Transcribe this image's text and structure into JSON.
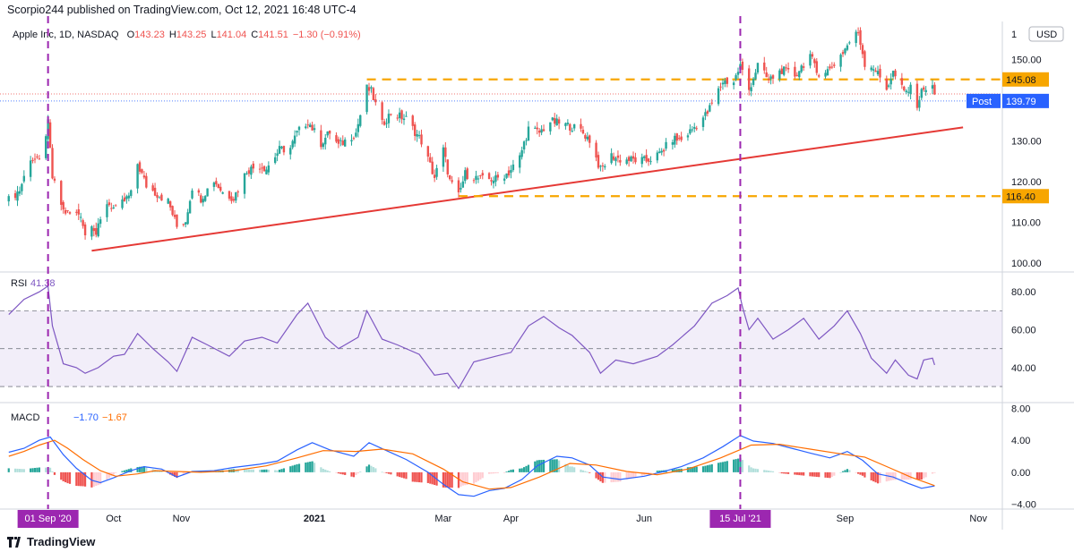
{
  "header": {
    "published_line": "Scorpio244 published on TradingView.com, Oct 12, 2021 16:48 UTC-4"
  },
  "footer": {
    "brand": "TradingView"
  },
  "colors": {
    "up": "#26a69a",
    "down": "#ef5350",
    "level": "#f7a600",
    "trendline": "#e53935",
    "vline": "#9c27b0",
    "rsi": "#7e57c2",
    "macd": "#2962ff",
    "signal": "#ff6d00",
    "post": "#2962ff"
  },
  "chart_data": [
    {
      "type": "candlestick",
      "title": "Apple Inc, 1D, NASDAQ",
      "ohlc_legend": {
        "open_label": "O",
        "open": "143.23",
        "high_label": "H",
        "high": "143.25",
        "low_label": "L",
        "low": "141.04",
        "close_label": "C",
        "close": "141.51",
        "change": "−1.30 (−0.91%)"
      },
      "currency": "USD",
      "ylim": [
        98,
        158
      ],
      "y_ticks": [
        "100.00",
        "110.00",
        "120.00",
        "130.00",
        "150.00"
      ],
      "x_tick_labels": [
        {
          "label": "Oct",
          "date": "2020-10-01"
        },
        {
          "label": "Nov",
          "date": "2020-11-01"
        },
        {
          "label": "2021",
          "date": "2021-01-01"
        },
        {
          "label": "Mar",
          "date": "2021-03-01"
        },
        {
          "label": "Apr",
          "date": "2021-04-01"
        },
        {
          "label": "Jun",
          "date": "2021-06-01"
        },
        {
          "label": "Sep",
          "date": "2021-09-01"
        },
        {
          "label": "Nov",
          "date": "2021-11-01"
        }
      ],
      "close_path": [
        [
          "2020-08-14",
          115.5
        ],
        [
          "2020-08-19",
          117.9
        ],
        [
          "2020-08-24",
          125.9
        ],
        [
          "2020-08-28",
          124.8
        ],
        [
          "2020-09-01",
          134.2
        ],
        [
          "2020-09-03",
          120.9
        ],
        [
          "2020-09-08",
          112.8
        ],
        [
          "2020-09-11",
          112.0
        ],
        [
          "2020-09-16",
          112.1
        ],
        [
          "2020-09-18",
          106.8
        ],
        [
          "2020-09-21",
          110.1
        ],
        [
          "2020-09-23",
          107.1
        ],
        [
          "2020-09-28",
          114.9
        ],
        [
          "2020-10-02",
          113.0
        ],
        [
          "2020-10-09",
          116.9
        ],
        [
          "2020-10-12",
          124.4
        ],
        [
          "2020-10-16",
          119.0
        ],
        [
          "2020-10-21",
          116.9
        ],
        [
          "2020-10-26",
          115.1
        ],
        [
          "2020-10-30",
          108.9
        ],
        [
          "2020-11-03",
          110.4
        ],
        [
          "2020-11-06",
          118.7
        ],
        [
          "2020-11-10",
          115.9
        ],
        [
          "2020-11-16",
          120.3
        ],
        [
          "2020-11-20",
          117.3
        ],
        [
          "2020-11-25",
          116.0
        ],
        [
          "2020-12-01",
          122.7
        ],
        [
          "2020-12-07",
          124.0
        ],
        [
          "2020-12-10",
          123.2
        ],
        [
          "2020-12-16",
          127.8
        ],
        [
          "2020-12-21",
          128.2
        ],
        [
          "2020-12-24",
          131.9
        ],
        [
          "2020-12-29",
          134.9
        ],
        [
          "2021-01-04",
          129.4
        ],
        [
          "2021-01-08",
          132.1
        ],
        [
          "2021-01-12",
          128.8
        ],
        [
          "2021-01-20",
          132.0
        ],
        [
          "2021-01-25",
          142.9
        ],
        [
          "2021-01-27",
          142.1
        ],
        [
          "2021-02-01",
          134.1
        ],
        [
          "2021-02-05",
          136.8
        ],
        [
          "2021-02-12",
          135.4
        ],
        [
          "2021-02-19",
          129.9
        ],
        [
          "2021-02-25",
          121.0
        ],
        [
          "2021-03-01",
          127.8
        ],
        [
          "2021-03-04",
          120.1
        ],
        [
          "2021-03-08",
          116.4
        ],
        [
          "2021-03-11",
          121.9
        ],
        [
          "2021-03-18",
          120.5
        ],
        [
          "2021-03-25",
          120.6
        ],
        [
          "2021-03-31",
          122.2
        ],
        [
          "2021-04-05",
          125.9
        ],
        [
          "2021-04-09",
          133.0
        ],
        [
          "2021-04-14",
          132.0
        ],
        [
          "2021-04-19",
          134.8
        ],
        [
          "2021-04-23",
          134.3
        ],
        [
          "2021-04-28",
          133.6
        ],
        [
          "2021-05-03",
          132.5
        ],
        [
          "2021-05-07",
          130.2
        ],
        [
          "2021-05-12",
          122.8
        ],
        [
          "2021-05-17",
          126.3
        ],
        [
          "2021-05-21",
          125.4
        ],
        [
          "2021-05-27",
          125.3
        ],
        [
          "2021-06-02",
          125.1
        ],
        [
          "2021-06-08",
          126.7
        ],
        [
          "2021-06-14",
          130.5
        ],
        [
          "2021-06-18",
          130.2
        ],
        [
          "2021-06-24",
          133.4
        ],
        [
          "2021-06-30",
          136.9
        ],
        [
          "2021-07-07",
          144.6
        ],
        [
          "2021-07-12",
          144.5
        ],
        [
          "2021-07-15",
          148.5
        ],
        [
          "2021-07-19",
          142.5
        ],
        [
          "2021-07-23",
          148.6
        ],
        [
          "2021-07-28",
          144.8
        ],
        [
          "2021-08-03",
          147.4
        ],
        [
          "2021-08-09",
          146.1
        ],
        [
          "2021-08-16",
          151.1
        ],
        [
          "2021-08-19",
          146.7
        ],
        [
          "2021-08-25",
          147.5
        ],
        [
          "2021-08-31",
          151.8
        ],
        [
          "2021-09-03",
          154.3
        ],
        [
          "2021-09-07",
          156.7
        ],
        [
          "2021-09-10",
          149.0
        ],
        [
          "2021-09-14",
          148.1
        ],
        [
          "2021-09-20",
          142.9
        ],
        [
          "2021-09-23",
          146.8
        ],
        [
          "2021-09-28",
          141.9
        ],
        [
          "2021-10-01",
          142.7
        ],
        [
          "2021-10-04",
          139.1
        ],
        [
          "2021-10-07",
          143.3
        ],
        [
          "2021-10-08",
          142.9
        ],
        [
          "2021-10-11",
          142.8
        ],
        [
          "2021-10-12",
          141.5
        ]
      ],
      "levels": [
        {
          "value": 145.08,
          "label": "145.08"
        },
        {
          "value": 116.4,
          "label": "116.40"
        }
      ],
      "trendline": {
        "start": [
          "2020-09-21",
          103
        ],
        "end": [
          "2021-10-25",
          133.3
        ]
      },
      "post_label": {
        "label": "Post",
        "value": 139.79,
        "value_label": "139.79"
      },
      "dotted_lines": [
        141.51,
        139.79
      ]
    },
    {
      "type": "line",
      "title": "RSI",
      "value_label": "41.38",
      "ylim": [
        22,
        90
      ],
      "y_ticks": [
        "80.00",
        "60.00",
        "40.00"
      ],
      "band": [
        30,
        70
      ],
      "midline": 50,
      "series_path": [
        [
          "2020-08-14",
          68
        ],
        [
          "2020-08-21",
          76
        ],
        [
          "2020-08-28",
          80
        ],
        [
          "2020-09-01",
          83
        ],
        [
          "2020-09-03",
          62
        ],
        [
          "2020-09-08",
          42
        ],
        [
          "2020-09-14",
          40
        ],
        [
          "2020-09-18",
          37
        ],
        [
          "2020-09-24",
          40
        ],
        [
          "2020-10-01",
          46
        ],
        [
          "2020-10-06",
          47
        ],
        [
          "2020-10-12",
          58
        ],
        [
          "2020-10-19",
          50
        ],
        [
          "2020-10-26",
          43
        ],
        [
          "2020-10-30",
          38
        ],
        [
          "2020-11-06",
          56
        ],
        [
          "2020-11-13",
          52
        ],
        [
          "2020-11-23",
          46
        ],
        [
          "2020-11-30",
          54
        ],
        [
          "2020-12-08",
          56
        ],
        [
          "2020-12-15",
          53
        ],
        [
          "2020-12-24",
          68
        ],
        [
          "2020-12-29",
          74
        ],
        [
          "2021-01-06",
          56
        ],
        [
          "2021-01-12",
          50
        ],
        [
          "2021-01-21",
          56
        ],
        [
          "2021-01-25",
          70
        ],
        [
          "2021-02-01",
          55
        ],
        [
          "2021-02-08",
          52
        ],
        [
          "2021-02-18",
          47
        ],
        [
          "2021-02-25",
          36
        ],
        [
          "2021-03-03",
          37
        ],
        [
          "2021-03-08",
          29
        ],
        [
          "2021-03-15",
          43
        ],
        [
          "2021-03-25",
          46
        ],
        [
          "2021-04-01",
          48
        ],
        [
          "2021-04-09",
          62
        ],
        [
          "2021-04-16",
          67
        ],
        [
          "2021-04-23",
          61
        ],
        [
          "2021-04-29",
          57
        ],
        [
          "2021-05-07",
          48
        ],
        [
          "2021-05-12",
          37
        ],
        [
          "2021-05-19",
          44
        ],
        [
          "2021-05-27",
          42
        ],
        [
          "2021-06-07",
          46
        ],
        [
          "2021-06-14",
          52
        ],
        [
          "2021-06-24",
          62
        ],
        [
          "2021-07-02",
          74
        ],
        [
          "2021-07-09",
          78
        ],
        [
          "2021-07-14",
          82
        ],
        [
          "2021-07-16",
          72
        ],
        [
          "2021-07-19",
          60
        ],
        [
          "2021-07-23",
          66
        ],
        [
          "2021-07-30",
          55
        ],
        [
          "2021-08-06",
          60
        ],
        [
          "2021-08-13",
          66
        ],
        [
          "2021-08-20",
          55
        ],
        [
          "2021-08-27",
          62
        ],
        [
          "2021-09-02",
          70
        ],
        [
          "2021-09-08",
          58
        ],
        [
          "2021-09-13",
          45
        ],
        [
          "2021-09-20",
          37
        ],
        [
          "2021-09-24",
          44
        ],
        [
          "2021-09-30",
          36
        ],
        [
          "2021-10-04",
          34
        ],
        [
          "2021-10-07",
          44
        ],
        [
          "2021-10-11",
          45
        ],
        [
          "2021-10-12",
          41.4
        ]
      ]
    },
    {
      "type": "line",
      "title": "MACD",
      "labels": {
        "macd": "−1.70",
        "signal": "−1.67"
      },
      "ylim": [
        -4.6,
        8.6
      ],
      "y_ticks": [
        {
          "label": "8.00",
          "value": 8
        },
        {
          "label": "4.00",
          "value": 4
        },
        {
          "label": "0.00",
          "value": 0
        },
        {
          "label": "−4.00",
          "value": -4
        }
      ],
      "x_markers": [
        {
          "label": "01 Sep '20",
          "date": "2020-09-01"
        },
        {
          "label": "15 Jul '21",
          "date": "2021-07-15"
        }
      ],
      "macd_path": [
        [
          "2020-08-14",
          2.5
        ],
        [
          "2020-08-21",
          3.0
        ],
        [
          "2020-08-28",
          4.0
        ],
        [
          "2020-09-02",
          4.4
        ],
        [
          "2020-09-08",
          2.2
        ],
        [
          "2020-09-14",
          0.5
        ],
        [
          "2020-09-21",
          -1.0
        ],
        [
          "2020-09-25",
          -1.3
        ],
        [
          "2020-10-01",
          -0.7
        ],
        [
          "2020-10-09",
          0.2
        ],
        [
          "2020-10-15",
          0.7
        ],
        [
          "2020-10-23",
          0.4
        ],
        [
          "2020-10-30",
          -0.6
        ],
        [
          "2020-11-06",
          0.1
        ],
        [
          "2020-11-16",
          0.2
        ],
        [
          "2020-11-25",
          0.6
        ],
        [
          "2020-12-07",
          1.0
        ],
        [
          "2020-12-15",
          1.4
        ],
        [
          "2020-12-24",
          2.8
        ],
        [
          "2020-12-31",
          3.7
        ],
        [
          "2021-01-08",
          2.8
        ],
        [
          "2021-01-19",
          2.0
        ],
        [
          "2021-01-26",
          3.7
        ],
        [
          "2021-02-03",
          2.7
        ],
        [
          "2021-02-12",
          1.6
        ],
        [
          "2021-02-22",
          0.0
        ],
        [
          "2021-03-01",
          -1.5
        ],
        [
          "2021-03-08",
          -2.8
        ],
        [
          "2021-03-15",
          -3.0
        ],
        [
          "2021-03-22",
          -2.3
        ],
        [
          "2021-03-29",
          -2.0
        ],
        [
          "2021-04-06",
          -0.9
        ],
        [
          "2021-04-13",
          0.8
        ],
        [
          "2021-04-22",
          2.0
        ],
        [
          "2021-04-29",
          1.8
        ],
        [
          "2021-05-07",
          0.9
        ],
        [
          "2021-05-13",
          -0.6
        ],
        [
          "2021-05-21",
          -0.9
        ],
        [
          "2021-06-01",
          -0.5
        ],
        [
          "2021-06-10",
          0.1
        ],
        [
          "2021-06-18",
          0.7
        ],
        [
          "2021-06-28",
          1.8
        ],
        [
          "2021-07-07",
          3.2
        ],
        [
          "2021-07-15",
          4.6
        ],
        [
          "2021-07-21",
          3.9
        ],
        [
          "2021-07-30",
          3.6
        ],
        [
          "2021-08-09",
          2.9
        ],
        [
          "2021-08-16",
          2.4
        ],
        [
          "2021-08-25",
          1.8
        ],
        [
          "2021-09-02",
          2.6
        ],
        [
          "2021-09-09",
          1.5
        ],
        [
          "2021-09-16",
          -0.2
        ],
        [
          "2021-09-23",
          -0.6
        ],
        [
          "2021-09-30",
          -1.4
        ],
        [
          "2021-10-06",
          -2.0
        ],
        [
          "2021-10-12",
          -1.7
        ]
      ],
      "signal_path": [
        [
          "2020-08-14",
          2.0
        ],
        [
          "2020-08-21",
          2.6
        ],
        [
          "2020-08-28",
          3.4
        ],
        [
          "2020-09-04",
          4.0
        ],
        [
          "2020-09-10",
          3.0
        ],
        [
          "2020-09-17",
          1.6
        ],
        [
          "2020-09-25",
          0.2
        ],
        [
          "2020-10-02",
          -0.5
        ],
        [
          "2020-10-12",
          -0.2
        ],
        [
          "2020-10-20",
          0.2
        ],
        [
          "2020-10-30",
          0.1
        ],
        [
          "2020-11-10",
          0.0
        ],
        [
          "2020-11-25",
          0.2
        ],
        [
          "2020-12-10",
          0.8
        ],
        [
          "2020-12-24",
          1.8
        ],
        [
          "2021-01-05",
          2.7
        ],
        [
          "2021-01-20",
          2.6
        ],
        [
          "2021-02-01",
          2.9
        ],
        [
          "2021-02-15",
          2.3
        ],
        [
          "2021-03-01",
          0.4
        ],
        [
          "2021-03-10",
          -1.2
        ],
        [
          "2021-03-22",
          -2.1
        ],
        [
          "2021-04-01",
          -1.9
        ],
        [
          "2021-04-14",
          -0.6
        ],
        [
          "2021-04-28",
          1.1
        ],
        [
          "2021-05-10",
          0.9
        ],
        [
          "2021-05-24",
          0.1
        ],
        [
          "2021-06-07",
          -0.3
        ],
        [
          "2021-06-21",
          0.4
        ],
        [
          "2021-07-06",
          1.8
        ],
        [
          "2021-07-20",
          3.4
        ],
        [
          "2021-08-02",
          3.5
        ],
        [
          "2021-08-16",
          2.9
        ],
        [
          "2021-08-30",
          2.3
        ],
        [
          "2021-09-10",
          1.9
        ],
        [
          "2021-09-21",
          0.6
        ],
        [
          "2021-10-01",
          -0.6
        ],
        [
          "2021-10-12",
          -1.67
        ]
      ]
    }
  ]
}
